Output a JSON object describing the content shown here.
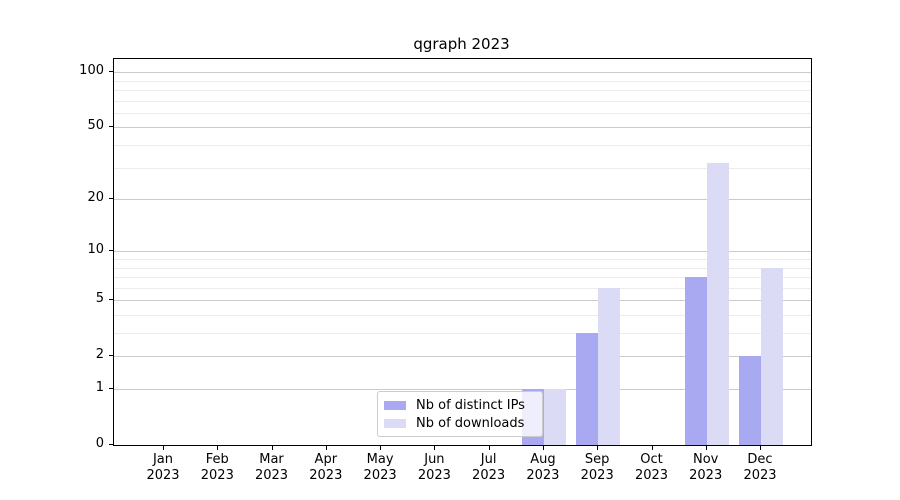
{
  "chart_data": {
    "type": "bar",
    "title": "qgraph 2023",
    "categories": [
      "Jan",
      "Feb",
      "Mar",
      "Apr",
      "May",
      "Jun",
      "Jul",
      "Aug",
      "Sep",
      "Oct",
      "Nov",
      "Dec"
    ],
    "year_label": "2023",
    "series": [
      {
        "name": "Nb of distinct IPs",
        "color": "#a9a9f1",
        "values": [
          0,
          0,
          0,
          0,
          0,
          0,
          0,
          1,
          3,
          0,
          7,
          2
        ]
      },
      {
        "name": "Nb of downloads",
        "color": "#dbdbf6",
        "values": [
          0,
          0,
          0,
          0,
          0,
          0,
          0,
          1,
          6,
          0,
          32,
          8
        ]
      }
    ],
    "xlabel": "",
    "ylabel": "",
    "y_scale": "log1p",
    "y_ticks": [
      0,
      1,
      2,
      5,
      10,
      20,
      50,
      100
    ],
    "y_minor_gridlines": [
      3,
      4,
      6,
      7,
      8,
      9,
      30,
      40,
      60,
      70,
      80,
      90
    ],
    "ylim": [
      0,
      118
    ],
    "grid": "on",
    "legend_position": "bottom-center",
    "colors": {
      "major_grid": "#cbcbcb",
      "minor_grid": "#ececec",
      "axis": "#000000",
      "background": "#ffffff"
    }
  }
}
